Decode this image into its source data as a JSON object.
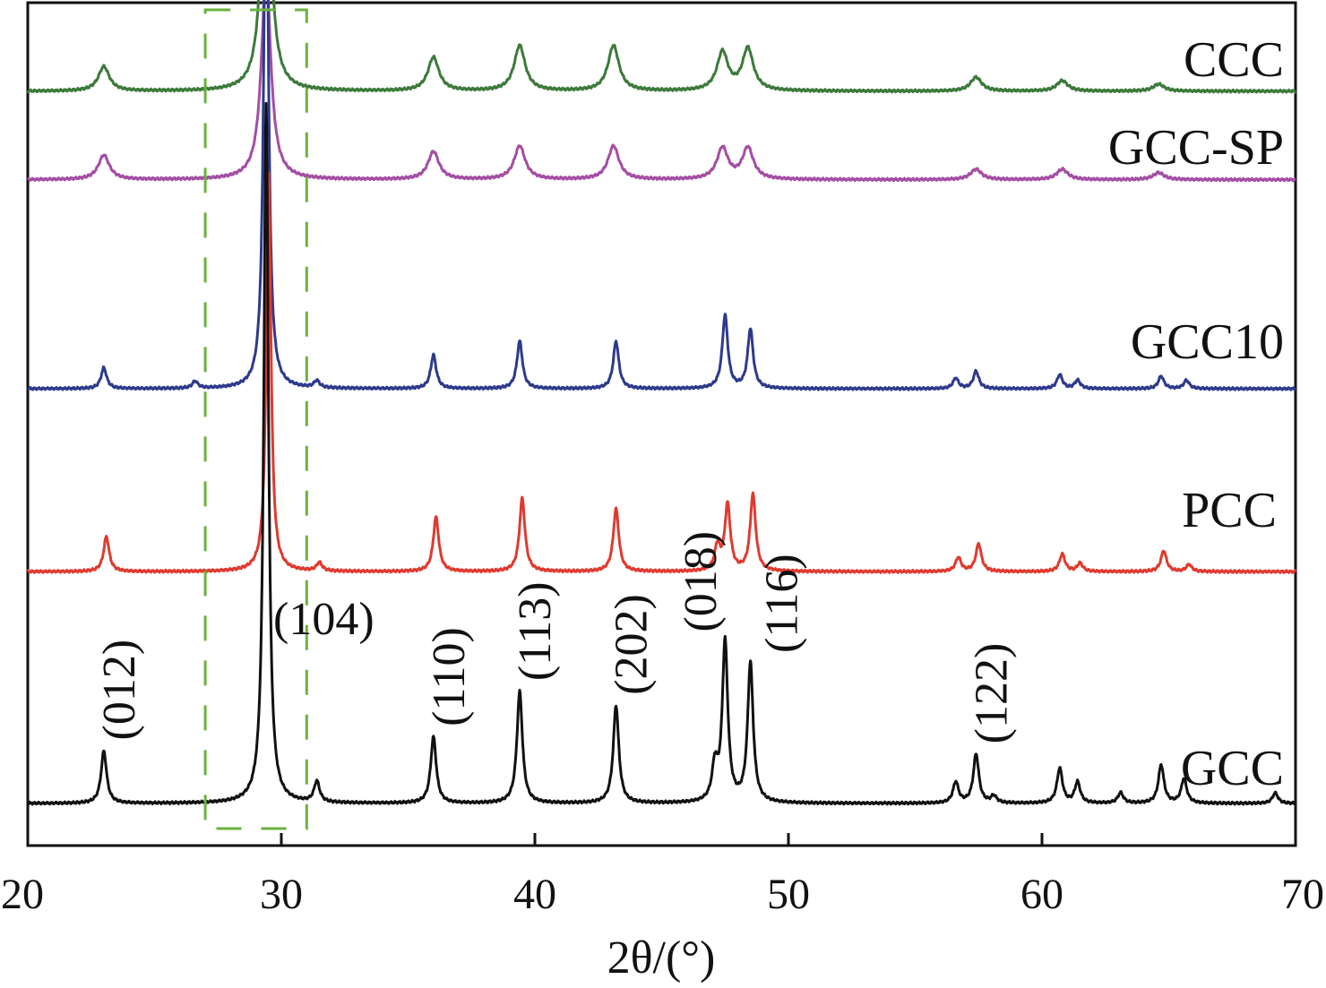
{
  "chart_data": {
    "type": "line",
    "xlabel": "2θ/(°)",
    "xlim": [
      20,
      70
    ],
    "x_ticks": [
      20,
      30,
      40,
      50,
      60,
      70
    ],
    "y_ticks_shown": false,
    "grid": false,
    "highlight_box": {
      "x_range": [
        27,
        31
      ],
      "color": "#6ab23e",
      "style": "dashed"
    },
    "series": [
      {
        "name": "CCC",
        "color": "#3c7a3a",
        "baseline_fraction": 0.895,
        "peak_shape": "broad",
        "peaks": [
          {
            "x": 23.0,
            "h": 0.035
          },
          {
            "x": 29.4,
            "h": 0.37
          },
          {
            "x": 36.0,
            "h": 0.048
          },
          {
            "x": 39.4,
            "h": 0.065
          },
          {
            "x": 43.1,
            "h": 0.065
          },
          {
            "x": 47.4,
            "h": 0.055
          },
          {
            "x": 48.4,
            "h": 0.06
          },
          {
            "x": 57.4,
            "h": 0.02
          },
          {
            "x": 60.8,
            "h": 0.015
          },
          {
            "x": 64.6,
            "h": 0.01
          }
        ]
      },
      {
        "name": "GCC-SP",
        "color": "#a44ea4",
        "baseline_fraction": 0.79,
        "peak_shape": "broad",
        "peaks": [
          {
            "x": 23.0,
            "h": 0.035
          },
          {
            "x": 29.4,
            "h": 0.3
          },
          {
            "x": 36.0,
            "h": 0.04
          },
          {
            "x": 39.4,
            "h": 0.048
          },
          {
            "x": 43.1,
            "h": 0.048
          },
          {
            "x": 47.4,
            "h": 0.045
          },
          {
            "x": 48.4,
            "h": 0.045
          },
          {
            "x": 57.4,
            "h": 0.015
          },
          {
            "x": 60.8,
            "h": 0.015
          },
          {
            "x": 64.6,
            "h": 0.01
          }
        ]
      },
      {
        "name": "GCC10",
        "color": "#2d3a8c",
        "baseline_fraction": 0.542,
        "peak_shape": "sharp",
        "peaks": [
          {
            "x": 23.0,
            "h": 0.03
          },
          {
            "x": 26.6,
            "h": 0.01
          },
          {
            "x": 29.4,
            "h": 0.82
          },
          {
            "x": 31.4,
            "h": 0.01
          },
          {
            "x": 36.0,
            "h": 0.048
          },
          {
            "x": 39.4,
            "h": 0.068
          },
          {
            "x": 43.2,
            "h": 0.068
          },
          {
            "x": 47.5,
            "h": 0.105
          },
          {
            "x": 48.5,
            "h": 0.085
          },
          {
            "x": 56.6,
            "h": 0.015
          },
          {
            "x": 57.4,
            "h": 0.025
          },
          {
            "x": 60.7,
            "h": 0.02
          },
          {
            "x": 61.4,
            "h": 0.012
          },
          {
            "x": 64.7,
            "h": 0.018
          },
          {
            "x": 65.7,
            "h": 0.012
          }
        ]
      },
      {
        "name": "PCC",
        "color": "#e03a2f",
        "baseline_fraction": 0.325,
        "peak_shape": "sharp",
        "peaks": [
          {
            "x": 23.1,
            "h": 0.05
          },
          {
            "x": 29.5,
            "h": 0.57
          },
          {
            "x": 31.5,
            "h": 0.012
          },
          {
            "x": 36.1,
            "h": 0.078
          },
          {
            "x": 39.5,
            "h": 0.105
          },
          {
            "x": 43.2,
            "h": 0.09
          },
          {
            "x": 47.2,
            "h": 0.035
          },
          {
            "x": 47.6,
            "h": 0.095
          },
          {
            "x": 48.6,
            "h": 0.11
          },
          {
            "x": 56.7,
            "h": 0.02
          },
          {
            "x": 57.5,
            "h": 0.04
          },
          {
            "x": 60.8,
            "h": 0.025
          },
          {
            "x": 61.5,
            "h": 0.012
          },
          {
            "x": 64.8,
            "h": 0.03
          },
          {
            "x": 65.8,
            "h": 0.01
          }
        ]
      },
      {
        "name": "GCC",
        "color": "#111111",
        "baseline_fraction": 0.05,
        "peak_shape": "sharp",
        "peaks": [
          {
            "x": 23.0,
            "h": 0.075
          },
          {
            "x": 29.4,
            "h": 1.0
          },
          {
            "x": 31.4,
            "h": 0.03
          },
          {
            "x": 36.0,
            "h": 0.095
          },
          {
            "x": 39.4,
            "h": 0.16
          },
          {
            "x": 43.2,
            "h": 0.14
          },
          {
            "x": 47.1,
            "h": 0.05
          },
          {
            "x": 47.5,
            "h": 0.23
          },
          {
            "x": 48.5,
            "h": 0.2
          },
          {
            "x": 56.6,
            "h": 0.03
          },
          {
            "x": 57.4,
            "h": 0.07
          },
          {
            "x": 58.1,
            "h": 0.01
          },
          {
            "x": 60.7,
            "h": 0.05
          },
          {
            "x": 61.4,
            "h": 0.03
          },
          {
            "x": 63.1,
            "h": 0.015
          },
          {
            "x": 64.7,
            "h": 0.055
          },
          {
            "x": 65.6,
            "h": 0.035
          },
          {
            "x": 69.2,
            "h": 0.015
          }
        ]
      }
    ],
    "annotations": [
      {
        "text": "(012)",
        "x": 23.0,
        "series": "GCC",
        "rotated": true
      },
      {
        "text": "(104)",
        "x": 29.4,
        "series": "GCC",
        "rotated": false
      },
      {
        "text": "(110)",
        "x": 36.0,
        "series": "GCC",
        "rotated": true
      },
      {
        "text": "(113)",
        "x": 39.4,
        "series": "GCC",
        "rotated": true
      },
      {
        "text": "(202)",
        "x": 43.2,
        "series": "GCC",
        "rotated": true
      },
      {
        "text": "(018)",
        "x": 47.5,
        "series": "GCC",
        "rotated": true
      },
      {
        "text": "(116)",
        "x": 48.5,
        "series": "GCC",
        "rotated": true
      },
      {
        "text": "(122)",
        "x": 57.4,
        "series": "GCC",
        "rotated": true
      }
    ]
  }
}
